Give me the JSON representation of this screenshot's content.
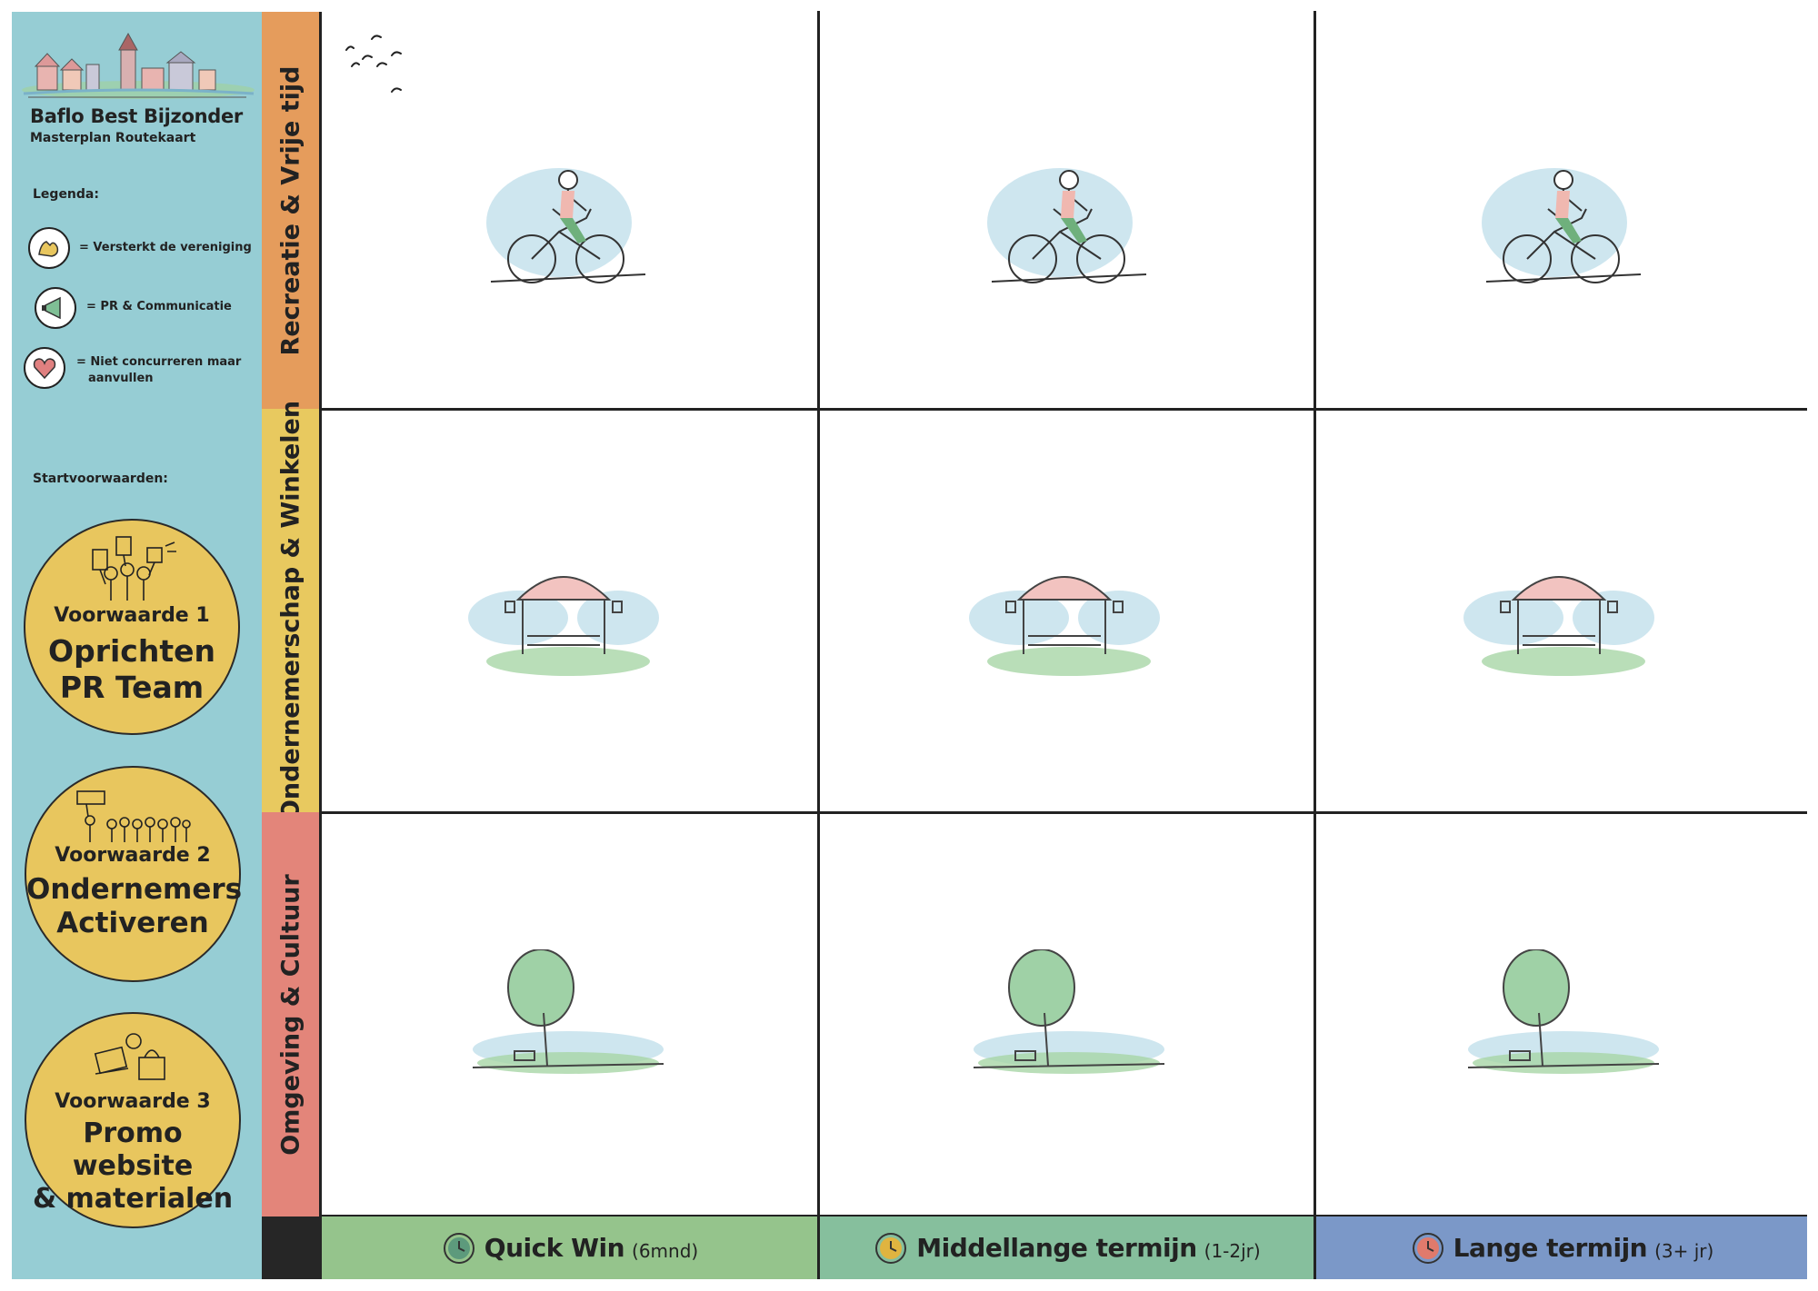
{
  "sidebar": {
    "title": "Baflo Best Bijzonder",
    "subtitle": "Masterplan Routekaart",
    "legend_title": "Legenda:",
    "legend": [
      {
        "icon": "strong-arm-icon",
        "text": "= Versterkt de vereniging"
      },
      {
        "icon": "megaphone-icon",
        "text": "= PR & Communicatie"
      },
      {
        "icon": "heart-icon",
        "text_line1": "= Niet concurreren maar",
        "text_line2": "aanvullen"
      }
    ],
    "conditions_title": "Startvoorwaarden:",
    "conditions": [
      {
        "label": "Voorwaarde 1",
        "title_line1": "Oprichten",
        "title_line2": "PR Team"
      },
      {
        "label": "Voorwaarde 2",
        "title_line1": "Ondernemers",
        "title_line2": "Activeren"
      },
      {
        "label": "Voorwaarde 3",
        "title_line1": "Promo website",
        "title_line2": "& materialen"
      }
    ]
  },
  "rows": [
    {
      "label": "Recreatie & Vrije tijd",
      "color": "#e59c5c",
      "illustration": "cyclist-sketch"
    },
    {
      "label": "Ondernemerschap & Winkelen",
      "color": "#e8c95f",
      "illustration": "market-stall-sketch"
    },
    {
      "label": "Omgeving & Cultuur",
      "color": "#e3857a",
      "illustration": "tree-sketch"
    }
  ],
  "columns": [
    {
      "main": "Quick Win",
      "sub": "(6mnd)",
      "color": "#95c48c",
      "clock_color": "#5d9a7c"
    },
    {
      "main": "Middellange termijn",
      "sub": "(1-2jr)",
      "color": "#86bf9d",
      "clock_color": "#e0b440"
    },
    {
      "main": "Lange termijn",
      "sub": "(3+ jr)",
      "color": "#7b98c8",
      "clock_color": "#e07a6c"
    }
  ]
}
